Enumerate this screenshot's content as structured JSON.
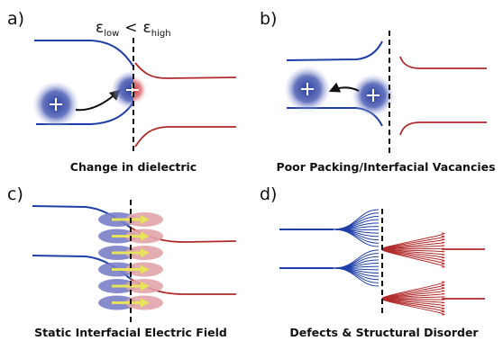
{
  "panels": {
    "a": {
      "label": "a)",
      "caption": "Change in dielectric"
    },
    "b": {
      "label": "b)",
      "caption": "Poor Packing/Interfacial Vacancies"
    },
    "c": {
      "label": "c)",
      "caption": "Static Interfacial Electric Field"
    },
    "d": {
      "label": "d)",
      "caption": "Defects & Structural Disorder"
    }
  },
  "epsilon": {
    "symbol": "ε",
    "low_sub": "low",
    "relation": "<",
    "high_sub": "high"
  },
  "charge_symbol": "+",
  "colors": {
    "blue": "#1f3fa8",
    "red": "#b02a2a",
    "dipole_blue": "#7a80c8",
    "dipole_red": "#e0a4a8",
    "arrow": "#e7e35a"
  }
}
